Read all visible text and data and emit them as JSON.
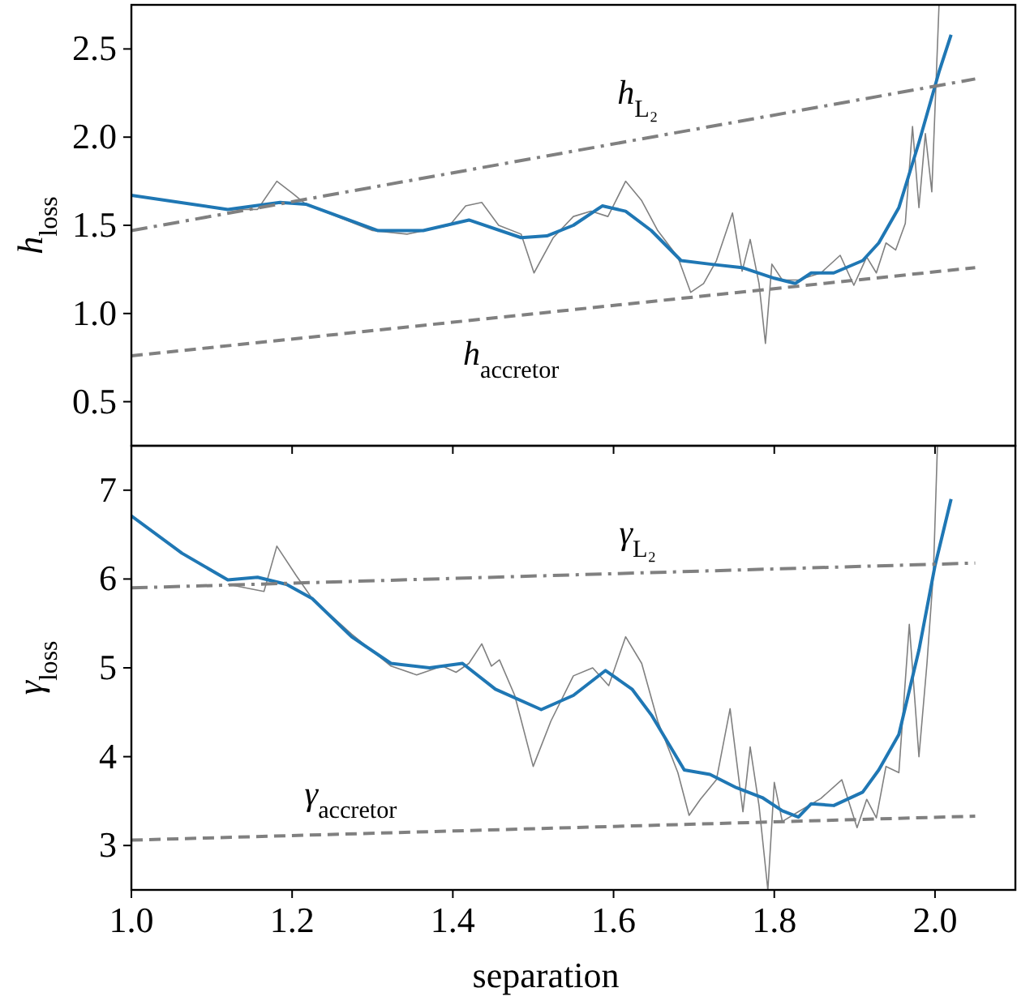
{
  "chart_data": [
    {
      "type": "line",
      "ylabel": "h$_{loss}$",
      "xlim": [
        1.0,
        2.1
      ],
      "xticks": [
        1.0,
        1.2,
        1.4,
        1.6,
        1.8,
        2.0
      ],
      "ylim": [
        0.25,
        2.75
      ],
      "yticks": [
        0.5,
        {
          "value": 1.0,
          "label": "1.0"
        },
        1.5,
        {
          "value": 2.0,
          "label": "2.0"
        },
        2.5
      ],
      "tick_labels": "y",
      "marker": "none",
      "series": [
        {
          "color": "#808080",
          "line_style": "solid",
          "x": [
            1.12,
            1.157,
            1.181,
            1.201,
            1.217,
            1.3,
            1.343,
            1.396,
            1.416,
            1.436,
            1.457,
            1.485,
            1.501,
            1.525,
            1.55,
            1.572,
            1.593,
            1.615,
            1.635,
            1.655,
            1.68,
            1.696,
            1.712,
            1.728,
            1.748,
            1.76,
            1.77,
            1.781,
            1.789,
            1.797,
            1.81,
            1.83,
            1.858,
            1.882,
            1.899,
            1.915,
            1.927,
            1.939,
            1.951,
            1.963,
            1.972,
            1.98,
            1.988,
            1.996,
            2.005
          ],
          "values": [
            1.59,
            1.59,
            1.75,
            1.68,
            1.62,
            1.47,
            1.45,
            1.5,
            1.61,
            1.63,
            1.5,
            1.45,
            1.23,
            1.43,
            1.55,
            1.58,
            1.55,
            1.75,
            1.64,
            1.47,
            1.32,
            1.12,
            1.17,
            1.3,
            1.57,
            1.24,
            1.42,
            1.17,
            0.83,
            1.28,
            1.19,
            1.19,
            1.23,
            1.33,
            1.16,
            1.32,
            1.23,
            1.4,
            1.36,
            1.51,
            2.06,
            1.6,
            2.02,
            1.69,
            2.75
          ]
        },
        {
          "color": "#1f77b4",
          "line_style": "solid",
          "x": [
            1.0,
            1.12,
            1.185,
            1.217,
            1.307,
            1.363,
            1.42,
            1.485,
            1.517,
            1.55,
            1.586,
            1.615,
            1.647,
            1.684,
            1.72,
            1.76,
            1.8,
            1.826,
            1.846,
            1.874,
            1.91,
            1.93,
            1.955,
            1.98,
            2.005,
            2.02
          ],
          "values": [
            1.67,
            1.59,
            1.63,
            1.62,
            1.47,
            1.47,
            1.53,
            1.43,
            1.44,
            1.5,
            1.61,
            1.58,
            1.47,
            1.3,
            1.28,
            1.26,
            1.2,
            1.17,
            1.23,
            1.23,
            1.3,
            1.4,
            1.6,
            1.97,
            2.37,
            2.58
          ]
        },
        {
          "name": "h$_{L₂}$",
          "color": "#808080",
          "line_style": "dashdot",
          "x": [
            1.0,
            2.05
          ],
          "values": [
            1.47,
            2.33
          ]
        },
        {
          "name": "h$_{accretor}$",
          "color": "#808080",
          "line_style": "dashed",
          "x": [
            1.0,
            2.05
          ],
          "values": [
            0.76,
            1.26
          ]
        }
      ]
    },
    {
      "type": "line",
      "xlabel": "separation",
      "ylabel": "γ$_{loss}$",
      "xlim": [
        1.0,
        2.1
      ],
      "xticks": [
        {
          "value": 1.0,
          "label": "1.0"
        },
        {
          "value": 1.2,
          "label": "1.2"
        },
        {
          "value": 1.4,
          "label": "1.4"
        },
        {
          "value": 1.6,
          "label": "1.6"
        },
        {
          "value": 1.8,
          "label": "1.8"
        },
        {
          "value": 2.0,
          "label": "2.0"
        }
      ],
      "ylim": [
        2.5,
        7.5
      ],
      "yticks": [
        3,
        4,
        5,
        6,
        7
      ],
      "marker": "none",
      "series": [
        {
          "color": "#808080",
          "line_style": "solid",
          "x": [
            1.12,
            1.165,
            1.181,
            1.205,
            1.225,
            1.274,
            1.323,
            1.355,
            1.387,
            1.404,
            1.42,
            1.436,
            1.448,
            1.458,
            1.477,
            1.5,
            1.522,
            1.55,
            1.574,
            1.594,
            1.615,
            1.635,
            1.655,
            1.68,
            1.694,
            1.708,
            1.728,
            1.745,
            1.761,
            1.77,
            1.781,
            1.792,
            1.8,
            1.81,
            1.83,
            1.858,
            1.884,
            1.903,
            1.915,
            1.927,
            1.939,
            1.955,
            1.968,
            1.98,
            1.99,
            1.998,
            2.003
          ],
          "values": [
            5.94,
            5.86,
            6.37,
            6.04,
            5.78,
            5.38,
            5.02,
            4.92,
            5.02,
            4.95,
            5.05,
            5.27,
            5.02,
            5.09,
            4.69,
            3.89,
            4.4,
            4.91,
            5.0,
            4.8,
            5.35,
            5.05,
            4.4,
            3.82,
            3.34,
            3.52,
            3.74,
            4.54,
            3.38,
            4.11,
            3.45,
            2.5,
            3.71,
            3.27,
            3.38,
            3.53,
            3.74,
            3.2,
            3.52,
            3.31,
            3.89,
            3.82,
            5.49,
            4.0,
            5.05,
            6.07,
            7.5
          ]
        },
        {
          "color": "#1f77b4",
          "line_style": "solid",
          "x": [
            1.0,
            1.063,
            1.12,
            1.157,
            1.193,
            1.225,
            1.274,
            1.323,
            1.371,
            1.412,
            1.453,
            1.51,
            1.55,
            1.59,
            1.623,
            1.647,
            1.688,
            1.72,
            1.753,
            1.785,
            1.81,
            1.83,
            1.846,
            1.874,
            1.91,
            1.93,
            1.955,
            1.98,
            2.0,
            2.02
          ],
          "values": [
            6.71,
            6.29,
            5.99,
            6.02,
            5.94,
            5.78,
            5.35,
            5.05,
            5.0,
            5.05,
            4.76,
            4.53,
            4.69,
            4.97,
            4.76,
            4.47,
            3.85,
            3.8,
            3.65,
            3.54,
            3.39,
            3.32,
            3.47,
            3.45,
            3.6,
            3.85,
            4.25,
            5.2,
            6.15,
            6.9
          ]
        },
        {
          "name": "γ$_{L₂}$",
          "color": "#808080",
          "line_style": "dashdot",
          "x": [
            1.0,
            2.05
          ],
          "values": [
            5.9,
            6.18
          ]
        },
        {
          "name": "γ$_{accretor}$",
          "color": "#808080",
          "line_style": "dashed",
          "x": [
            1.0,
            2.05
          ],
          "values": [
            3.06,
            3.33
          ]
        }
      ]
    }
  ]
}
